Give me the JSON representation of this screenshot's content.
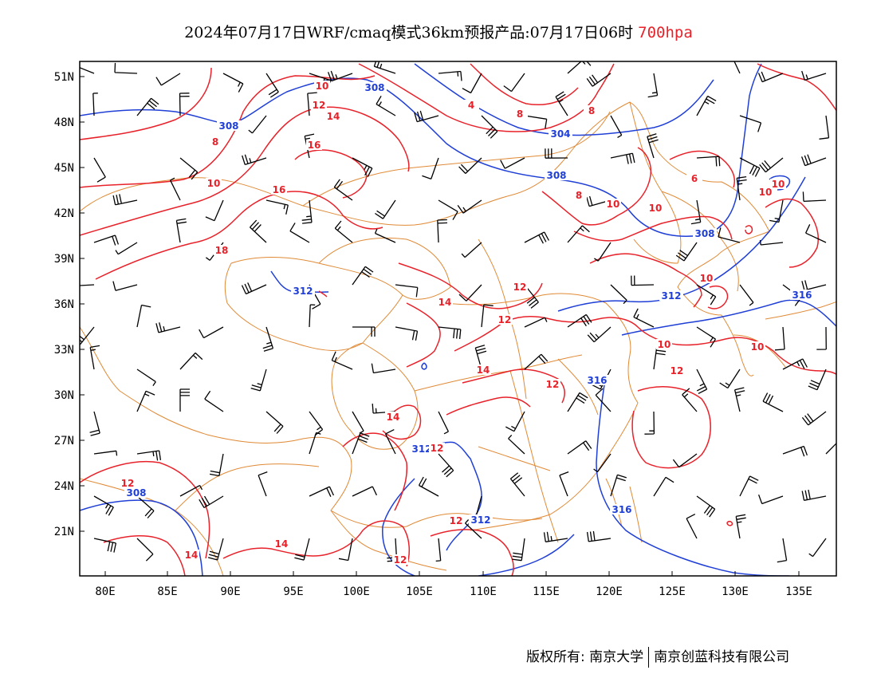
{
  "title": {
    "main": "2024年07月17日WRF/cmaq模式36km预报产品:07月17日06时",
    "level": "700hpa"
  },
  "axes": {
    "lat_labels": [
      "51N",
      "48N",
      "45N",
      "42N",
      "39N",
      "36N",
      "33N",
      "30N",
      "27N",
      "24N",
      "21N"
    ],
    "lon_labels": [
      "80E",
      "85E",
      "90E",
      "95E",
      "100E",
      "105E",
      "110E",
      "115E",
      "120E",
      "125E",
      "130E",
      "135E"
    ]
  },
  "contours": {
    "geopotential_labels": [
      "308",
      "308",
      "304",
      "308",
      "308",
      "312",
      "316",
      "316",
      "316",
      "312",
      "308",
      "312",
      "312"
    ],
    "temperature_labels": [
      "10",
      "12",
      "14",
      "16",
      "8",
      "10",
      "16",
      "18",
      "4",
      "8",
      "8",
      "6",
      "8",
      "10",
      "10",
      "10",
      "10",
      "14",
      "12",
      "12",
      "10",
      "10",
      "12",
      "12",
      "14",
      "14",
      "12",
      "12",
      "12",
      "14",
      "14",
      "12",
      "10"
    ]
  },
  "colors": {
    "geopotential": "#1f3fd6",
    "temperature": "#e8222a",
    "boundary": "#e08a36",
    "barb": "#000000"
  },
  "footer": {
    "copyright": "版权所有: 南京大学",
    "company": "南京创蓝科技有限公司"
  }
}
